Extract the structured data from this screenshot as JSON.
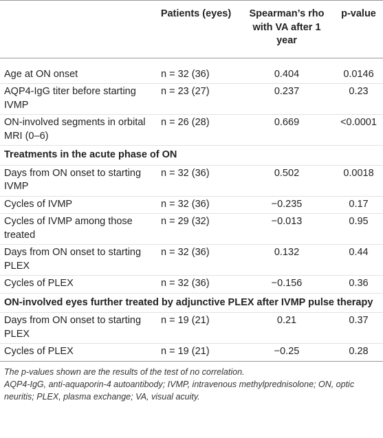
{
  "table": {
    "columns": [
      "Patients (eyes)",
      "Spearman’s rho with VA after 1 year",
      "p-value"
    ],
    "rows": [
      [
        "Age at ON onset",
        "n = 32 (36)",
        "0.404",
        "0.0146"
      ],
      [
        "AQP4-IgG titer before starting IVMP",
        "n = 23 (27)",
        "0.237",
        "0.23"
      ],
      [
        "ON-involved segments in orbital MRI (0–6)",
        "n = 26 (28)",
        "0.669",
        "<0.0001"
      ],
      [
        "Treatments in the acute phase of ON"
      ],
      [
        "Days from ON onset to starting IVMP",
        "n = 32 (36)",
        "0.502",
        "0.0018"
      ],
      [
        "Cycles of IVMP",
        "n = 32 (36)",
        "−0.235",
        "0.17"
      ],
      [
        "Cycles of IVMP among those treated",
        "n = 29 (32)",
        "−0.013",
        "0.95"
      ],
      [
        "Days from ON onset to starting PLEX",
        "n = 32 (36)",
        "0.132",
        "0.44"
      ],
      [
        "Cycles of PLEX",
        "n = 32 (36)",
        "−0.156",
        "0.36"
      ],
      [
        "ON-involved eyes further treated by adjunctive PLEX after IVMP pulse therapy"
      ],
      [
        "Days from ON onset to starting PLEX",
        "n = 19 (21)",
        "0.21",
        "0.37"
      ],
      [
        "Cycles of PLEX",
        "n = 19 (21)",
        "−0.25",
        "0.28"
      ]
    ],
    "footnotes": [
      "The p-values shown are the results of the test of no correlation.",
      "AQP4-IgG, anti-aquaporin-4 autoantibody; IVMP, intravenous methylprednisolone; ON, optic neuritis; PLEX, plasma exchange; VA, visual acuity."
    ]
  }
}
